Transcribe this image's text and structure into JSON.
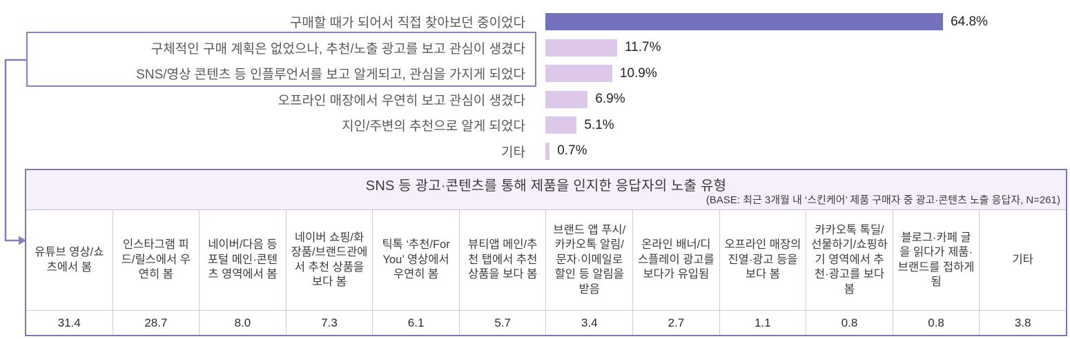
{
  "chart": {
    "rows": [
      {
        "label": "구매할 때가 되어서 직접 찾아보던 중이었다",
        "value": 64.8,
        "display": "64.8%",
        "primary": true,
        "boxed": false
      },
      {
        "label": "구체적인 구매 계획은 없었으나, 추천/노출 광고를 보고 관심이 생겼다",
        "value": 11.7,
        "display": "11.7%",
        "primary": false,
        "boxed": true
      },
      {
        "label": "SNS/영상 콘텐츠 등 인플루언서를 보고 알게되고, 관심을 가지게 되었다",
        "value": 10.9,
        "display": "10.9%",
        "primary": false,
        "boxed": true
      },
      {
        "label": "오프라인 매장에서 우연히 보고 관심이 생겼다",
        "value": 6.9,
        "display": "6.9%",
        "primary": false,
        "boxed": false
      },
      {
        "label": "지인/주변의 추천으로 알게 되었다",
        "value": 5.1,
        "display": "5.1%",
        "primary": false,
        "boxed": false
      },
      {
        "label": "기타",
        "value": 0.7,
        "display": "0.7%",
        "primary": false,
        "boxed": false
      }
    ],
    "colors": {
      "primary_bar": "#7472be",
      "secondary_bar": "#ddc8e9",
      "highlight_border": "#8081bd",
      "table_outer_border": "#7b76b4",
      "table_inner_border": "#d5c4e4",
      "table_title_bg": "#f5f0f9"
    }
  },
  "table": {
    "title": "SNS 등 광고·콘텐츠를 통해 제품을 인지한 응답자의 노출 유형",
    "base_note": "(BASE: 최근 3개월 내 ‘스킨케어’ 제품 구매자 중 광고·콘텐츠 노출 응답자, N=261)",
    "columns": [
      {
        "header": "유튜브 영상/쇼츠에서 봄",
        "value": "31.4"
      },
      {
        "header": "인스타그램 피드/릴스에서 우연히 봄",
        "value": "28.7"
      },
      {
        "header": "네이버/다음 등 포털 메인·콘텐츠 영역에서 봄",
        "value": "8.0"
      },
      {
        "header": "네이버 쇼핑/화장품/브랜드관에서 추천 상품을 보다 봄",
        "value": "7.3"
      },
      {
        "header": "틱톡 ‘추천/For You’ 영상에서 우연히 봄",
        "value": "6.1"
      },
      {
        "header": "뷰티앱 메인/추천 탭에서 추천 상품을 보다 봄",
        "value": "5.7"
      },
      {
        "header": "브랜드 앱 푸시/카카오톡 알림/문자·이메일로 할인 등 알림을 받음",
        "value": "3.4"
      },
      {
        "header": "온라인 배너/디스플레이 광고를 보다가 유입됨",
        "value": "2.7"
      },
      {
        "header": "오프라인 매장의 진열·광고 등을 보다 봄",
        "value": "1.1"
      },
      {
        "header": "카카오톡 톡딜/선물하기/쇼핑하기 영역에서 추천·광고를 보다 봄",
        "value": "0.8"
      },
      {
        "header": "블로그·카페 글을 읽다가 제품·브랜드를 접하게 됨",
        "value": "0.8"
      },
      {
        "header": "기타",
        "value": "3.8"
      }
    ]
  },
  "chart_data": [
    {
      "type": "bar",
      "orientation": "horizontal",
      "categories": [
        "구매할 때가 되어서 직접 찾아보던 중이었다",
        "구체적인 구매 계획은 없었으나, 추천/노출 광고를 보고 관심이 생겼다",
        "SNS/영상 콘텐츠 등 인플루언서를 보고 알게되고, 관심을 가지게 되었다",
        "오프라인 매장에서 우연히 보고 관심이 생겼다",
        "지인/주변의 추천으로 알게 되었다",
        "기타"
      ],
      "values": [
        64.8,
        11.7,
        10.9,
        6.9,
        5.1,
        0.7
      ],
      "unit": "%",
      "title": "",
      "xlabel": "",
      "ylabel": "",
      "xlim": [
        0,
        70
      ],
      "grid": false,
      "legend": "none",
      "data_labels": [
        "64.8%",
        "11.7%",
        "10.9%",
        "6.9%",
        "5.1%",
        "0.7%"
      ],
      "annotations": "2번째·3번째 항목이 테두리 상자로 강조되어 아래 표로 화살표 연결됨"
    },
    {
      "type": "table",
      "title": "SNS 등 광고·콘텐츠를 통해 제품을 인지한 응답자의 노출 유형",
      "subtitle": "(BASE: 최근 3개월 내 ‘스킨케어’ 제품 구매자 중 광고·콘텐츠 노출 응답자, N=261)",
      "categories": [
        "유튜브 영상/쇼츠에서 봄",
        "인스타그램 피드/릴스에서 우연히 봄",
        "네이버/다음 등 포털 메인·콘텐츠 영역에서 봄",
        "네이버 쇼핑/화장품/브랜드관에서 추천 상품을 보다 봄",
        "틱톡 ‘추천/For You’ 영상에서 우연히 봄",
        "뷰티앱 메인/추천 탭에서 추천 상품을 보다 봄",
        "브랜드 앱 푸시/카카오톡 알림/문자·이메일로 할인 등 알림을 받음",
        "온라인 배너/디스플레이 광고를 보다가 유입됨",
        "오프라인 매장의 진열·광고 등을 보다 봄",
        "카카오톡 톡딜/선물하기/쇼핑하기 영역에서 추천·광고를 보다 봄",
        "블로그·카페 글을 읽다가 제품·브랜드를 접하게 됨",
        "기타"
      ],
      "values": [
        31.4,
        28.7,
        8.0,
        7.3,
        6.1,
        5.7,
        3.4,
        2.7,
        1.1,
        0.8,
        0.8,
        3.8
      ],
      "unit": "%"
    }
  ]
}
